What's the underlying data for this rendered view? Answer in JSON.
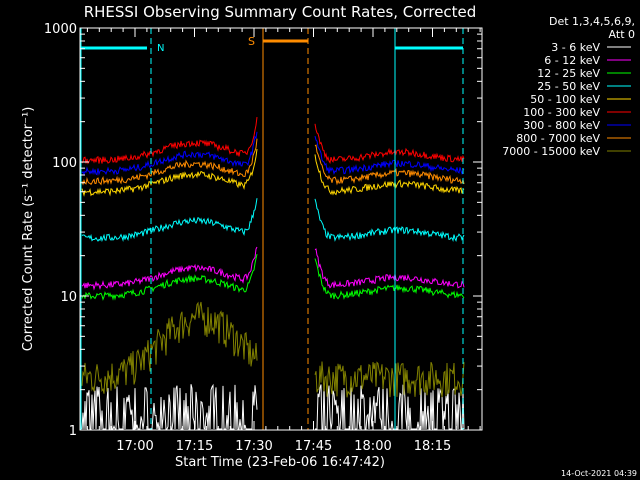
{
  "chart_data": {
    "type": "line",
    "title": "RHESSI Observing Summary Count Rates, Corrected",
    "xlabel": "Start Time (23-Feb-06 16:47:42)",
    "ylabel": "Corrected Count Rate (s⁻¹ detector⁻¹)",
    "y_scale": "log",
    "ylim": [
      1,
      1000
    ],
    "y_ticks": [
      {
        "value": 1,
        "label": "1"
      },
      {
        "value": 10,
        "label": "10"
      },
      {
        "value": 100,
        "label": "100"
      },
      {
        "value": 1000,
        "label": "1000"
      }
    ],
    "x_ticks": [
      "17:00",
      "17:15",
      "17:30",
      "17:45",
      "18:00",
      "18:15"
    ],
    "legend_title": [
      "Det 1,3,4,5,6,9,",
      "Att 0"
    ],
    "legend_position": "right",
    "series": [
      {
        "name": "3 - 6 keV",
        "color": "#ffffff",
        "level": 1.3
      },
      {
        "name": "6 - 12 keV",
        "color": "#ff00ff",
        "level": 12
      },
      {
        "name": "12 - 25 keV",
        "color": "#00ff00",
        "level": 10
      },
      {
        "name": "25 - 50 keV",
        "color": "#00ffff",
        "level": 27
      },
      {
        "name": "50 - 100 keV",
        "color": "#ffd700",
        "level": 60
      },
      {
        "name": "100 - 300 keV",
        "color": "#ff0000",
        "level": 103
      },
      {
        "name": "300 - 800 keV",
        "color": "#0000ff",
        "level": 85
      },
      {
        "name": "800 - 7000 keV",
        "color": "#ff8c00",
        "level": 72
      },
      {
        "name": "7000 - 15000 keV",
        "color": "#808000",
        "level": 2.5
      }
    ],
    "annotations": [
      {
        "label": "N",
        "color": "#00ffff"
      },
      {
        "label": "S",
        "color": "#ff8c00"
      }
    ]
  },
  "footer": {
    "timestamp": "14-Oct-2021 04:39"
  }
}
